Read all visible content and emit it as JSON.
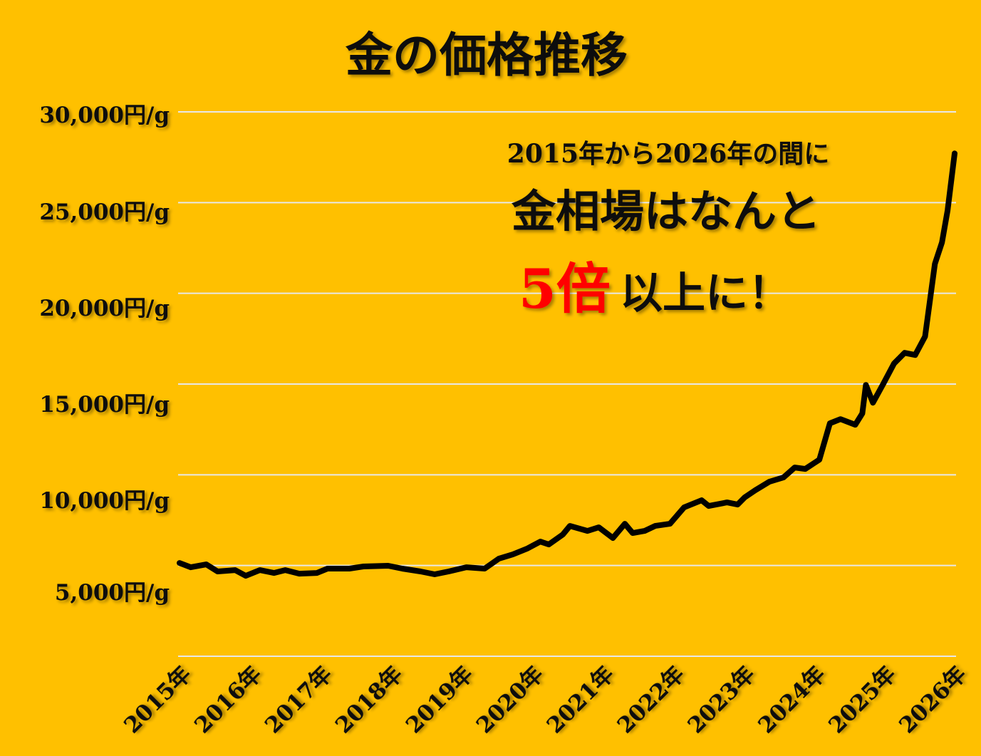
{
  "chart_data": {
    "type": "line",
    "title": "金の価格推移",
    "xlabel": "",
    "ylabel": "",
    "x_tick_labels": [
      "2015年",
      "2016年",
      "2017年",
      "2018年",
      "2019年",
      "2020年",
      "2021年",
      "2022年",
      "2023年",
      "2024年",
      "2025年",
      "2026年"
    ],
    "x_ticks": [
      2015,
      2016,
      2017,
      2018,
      2019,
      2020,
      2021,
      2022,
      2023,
      2024,
      2025,
      2026
    ],
    "y_tick_labels": [
      "30,000円/g",
      "25,000円/g",
      "20,000円/g",
      "15,000円/g",
      "10,000円/g",
      "5,000円/g"
    ],
    "y_gridlines": [
      0,
      5000,
      10000,
      15000,
      20000,
      25000,
      30000
    ],
    "xlim": [
      2015,
      2026
    ],
    "ylim": [
      0,
      30000
    ],
    "grid": true,
    "legend": "none",
    "colors": {
      "background": "#FFC000",
      "line": "#000000",
      "grid": "#E8E8E8",
      "highlight": "#FF0000"
    },
    "series": [
      {
        "x": [
          2015.0,
          2015.16,
          2015.38,
          2015.54,
          2015.79,
          2015.94,
          2016.14,
          2016.34,
          2016.5,
          2016.7,
          2016.95,
          2017.1,
          2017.41,
          2017.61,
          2017.96,
          2018.16,
          2018.42,
          2018.62,
          2018.82,
          2019.07,
          2019.33,
          2019.53,
          2019.73,
          2019.93,
          2020.12,
          2020.24,
          2020.44,
          2020.54,
          2020.79,
          2020.95,
          2021.15,
          2021.32,
          2021.43,
          2021.6,
          2021.75,
          2021.96,
          2022.16,
          2022.41,
          2022.51,
          2022.77,
          2022.92,
          2023.02,
          2023.17,
          2023.37,
          2023.57,
          2023.73,
          2023.88,
          2024.08,
          2024.23,
          2024.38,
          2024.59,
          2024.69,
          2024.74,
          2024.84,
          2024.99,
          2025.14,
          2025.29,
          2025.44,
          2025.58,
          2025.72,
          2025.82,
          2025.9,
          2026.0
        ],
        "y": [
          5142,
          4906,
          5063,
          4671,
          4749,
          4435,
          4749,
          4592,
          4749,
          4553,
          4592,
          4828,
          4828,
          4946,
          4985,
          4828,
          4671,
          4514,
          4671,
          4906,
          4828,
          5377,
          5613,
          5927,
          6319,
          6162,
          6712,
          7183,
          6908,
          7104,
          6516,
          7301,
          6790,
          6908,
          7183,
          7301,
          8203,
          8596,
          8282,
          8478,
          8360,
          8753,
          9145,
          9616,
          9852,
          10401,
          10323,
          10833,
          12835,
          13070,
          12756,
          13384,
          14954,
          13973,
          15033,
          16132,
          16721,
          16603,
          17623,
          21627,
          22804,
          24571,
          27711
        ]
      }
    ],
    "annotation": {
      "line1": "2015年から2026年の間に",
      "line2": "金相場はなんと",
      "line3_highlight": "5倍",
      "line3_rest": "以上に！"
    }
  }
}
